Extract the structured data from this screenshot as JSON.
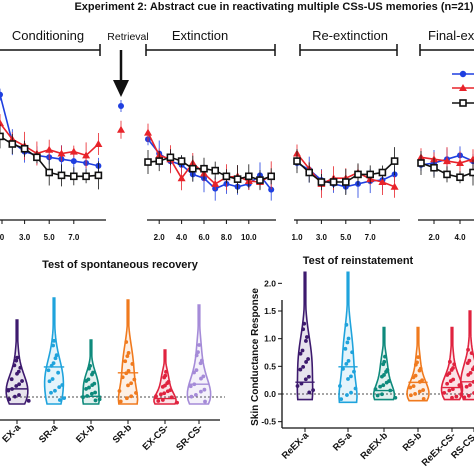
{
  "figure": {
    "title": "Experiment 2:  Abstract cue in reactivating multiple CSs-US memories  (n=21)"
  },
  "colors": {
    "blue": "#1f3fe0",
    "red": "#e8232a",
    "black": "#111111",
    "purple": "#3d1a6e",
    "cyan": "#1fa3dc",
    "teal": "#0e8a7c",
    "orange": "#f07a1e",
    "magenta": "#e0233f",
    "lavender": "#a58bd8"
  },
  "chart_data": [
    {
      "type": "line",
      "title": "Experiment 2:  Abstract cue in reactivating multiple CSs-US memories  (n=21)",
      "phases": [
        {
          "label": "Conditioning",
          "ticks": [
            "0",
            "3.0",
            "5.0",
            "7.0"
          ]
        },
        {
          "label": "Retrieval",
          "ticks": []
        },
        {
          "label": "Extinction",
          "ticks": [
            "2.0",
            "4.0",
            "6.0",
            "8.0",
            "10.0"
          ]
        },
        {
          "label": "Re-extinction",
          "ticks": [
            "1.0",
            "3.0",
            "5.0",
            "7.0"
          ]
        },
        {
          "label": "Final-ex",
          "ticks": [
            "2.0",
            "4.0"
          ]
        }
      ],
      "series": [
        {
          "color": "blue",
          "marker": "circle",
          "conditioning": [
            0.92,
            0.42,
            0.32,
            0.28,
            0.26,
            0.24,
            0.22,
            0.2,
            0.17
          ],
          "retrieval": [
            0.8
          ],
          "extinction": [
            0.45,
            0.3,
            0.22,
            0.18,
            0.08,
            0.04,
            -0.07,
            -0.02,
            -0.05,
            -0.02,
            0.07,
            -0.08
          ],
          "reextinction": [
            0.2,
            0.13,
            0.02,
            -0.02,
            -0.05,
            -0.02,
            0.01,
            0.02,
            0.08
          ],
          "final": [
            0.18,
            0.2,
            0.24,
            0.28,
            0.22
          ]
        },
        {
          "color": "red",
          "marker": "triangle",
          "conditioning": [
            0.62,
            0.45,
            0.38,
            0.3,
            0.34,
            0.3,
            0.32,
            0.28,
            0.4
          ],
          "retrieval": [
            0.55
          ],
          "extinction": [
            0.52,
            0.28,
            0.24,
            0.04,
            0.2,
            0.09,
            -0.02,
            0.05,
            0.06,
            0.01,
            0.0,
            0.07
          ],
          "reextinction": [
            0.3,
            0.14,
            -0.02,
            0.04,
            0.04,
            0.1,
            0.03,
            0.0,
            -0.05
          ],
          "final": [
            0.26,
            0.24,
            0.22,
            0.2,
            0.24
          ]
        },
        {
          "color": "black",
          "marker": "square",
          "conditioning": [
            0.48,
            0.4,
            0.35,
            0.26,
            0.1,
            0.07,
            0.06,
            0.06,
            0.07
          ],
          "retrieval": [],
          "extinction": [
            0.21,
            0.22,
            0.26,
            0.22,
            0.14,
            0.14,
            0.12,
            0.06,
            0.03,
            0.06,
            0.02,
            0.06
          ],
          "reextinction": [
            0.22,
            0.1,
            0.0,
            0.0,
            0.0,
            0.08,
            0.08,
            0.1,
            0.22
          ],
          "final": [
            0.2,
            0.15,
            0.08,
            0.05,
            0.1
          ]
        }
      ]
    },
    {
      "type": "violin",
      "title": "Test of spontaneous recovery",
      "categories": [
        "EX-a",
        "SR-a",
        "EX-b",
        "SR-b",
        "EX-CS-",
        "SR-CS-"
      ],
      "colors": [
        "purple",
        "cyan",
        "teal",
        "orange",
        "magenta",
        "lavender"
      ],
      "medians": [
        0.18,
        0.35,
        0.12,
        0.3,
        0.1,
        0.2
      ]
    },
    {
      "type": "violin",
      "title": "Test of reinstatement",
      "ylabel": "Skin Conductance Response",
      "yticks": [
        "-0.5",
        "0.0",
        "0.5",
        "1.0",
        "1.5",
        "2.0"
      ],
      "ylim": [
        -0.5,
        2.3
      ],
      "categories": [
        "ReEX-a",
        "RS-a",
        "ReEX-b",
        "RS-b",
        "ReEx-CS-",
        "RS-CS-"
      ],
      "colors": [
        "purple",
        "cyan",
        "teal",
        "orange",
        "magenta",
        "magenta"
      ],
      "medians": [
        0.3,
        0.6,
        0.15,
        0.3,
        0.2,
        0.3
      ],
      "maxima": [
        2.2,
        2.2,
        1.2,
        1.2,
        1.2,
        1.5
      ]
    }
  ]
}
